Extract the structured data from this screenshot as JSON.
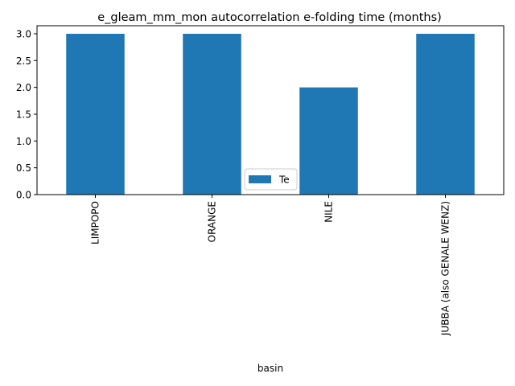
{
  "chart_data": {
    "type": "bar",
    "title": "e_gleam_mm_mon autocorrelation e-folding time (months)",
    "xlabel": "basin",
    "ylabel": "",
    "categories": [
      "LIMPOPO",
      "ORANGE",
      "NILE",
      "JUBBA (also GENALE WENZ)"
    ],
    "series": [
      {
        "name": "Te",
        "values": [
          3.0,
          3.0,
          2.0,
          3.0
        ],
        "color": "#1f77b4"
      }
    ],
    "ylim": [
      0,
      3.15
    ],
    "yticks": [
      "0.0",
      "0.5",
      "1.0",
      "1.5",
      "2.0",
      "2.5",
      "3.0"
    ],
    "grid": false,
    "legend_position": "lower-center",
    "category_label_rotation": "vertical"
  }
}
